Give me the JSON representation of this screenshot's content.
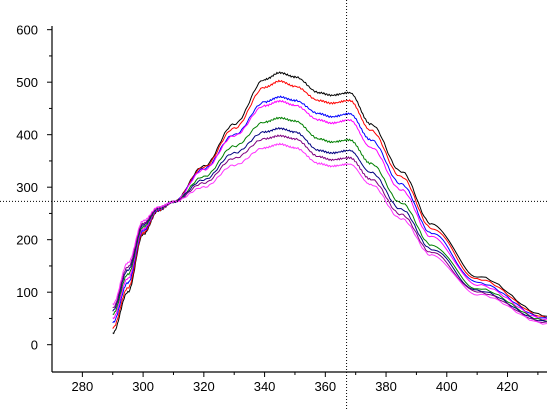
{
  "chart_data": {
    "type": "line",
    "title": "",
    "xlabel": "",
    "ylabel": "",
    "xlim": [
      270,
      433
    ],
    "ylim": [
      -52,
      607
    ],
    "x_ticks": [
      280,
      300,
      320,
      340,
      360,
      380,
      400,
      420
    ],
    "x_tick_labels": [
      "280",
      "300",
      "320",
      "340",
      "360",
      "380",
      "400",
      "420"
    ],
    "y_ticks": [
      0,
      100,
      200,
      300,
      400,
      500,
      600
    ],
    "y_tick_labels": [
      "0",
      "100",
      "200",
      "300",
      "400",
      "500",
      "600"
    ],
    "grid": false,
    "legend": "none",
    "crosshair": {
      "x": 367,
      "y": 273
    },
    "x": [
      290,
      295,
      300,
      305,
      310,
      320,
      330,
      340,
      345,
      350,
      358,
      362,
      368,
      375,
      385,
      395,
      410,
      433
    ],
    "series": [
      {
        "color": "#000000",
        "values": [
          22,
          100,
          210,
          255,
          272,
          340,
          420,
          505,
          518,
          510,
          480,
          475,
          480,
          420,
          330,
          230,
          130,
          55
        ]
      },
      {
        "color": "#ff0000",
        "values": [
          32,
          108,
          213,
          256,
          272,
          338,
          412,
          490,
          502,
          492,
          465,
          460,
          465,
          408,
          320,
          222,
          125,
          52
        ]
      },
      {
        "color": "#0000ff",
        "values": [
          42,
          118,
          217,
          257,
          272,
          335,
          400,
          462,
          472,
          465,
          440,
          434,
          440,
          390,
          306,
          212,
          118,
          50
        ]
      },
      {
        "color": "#ff00ff",
        "values": [
          50,
          126,
          220,
          258,
          272,
          333,
          398,
          455,
          464,
          456,
          428,
          422,
          428,
          376,
          295,
          205,
          114,
          48
        ]
      },
      {
        "color": "#008000",
        "values": [
          58,
          134,
          224,
          259,
          272,
          320,
          378,
          424,
          432,
          426,
          392,
          386,
          390,
          345,
          270,
          190,
          107,
          46
        ]
      },
      {
        "color": "#000080",
        "values": [
          65,
          142,
          228,
          260,
          272,
          314,
          365,
          405,
          412,
          405,
          370,
          365,
          370,
          328,
          258,
          182,
          103,
          44
        ]
      },
      {
        "color": "#800080",
        "values": [
          70,
          148,
          231,
          261,
          272,
          308,
          355,
          392,
          398,
          392,
          358,
          352,
          356,
          315,
          248,
          175,
          100,
          42
        ]
      },
      {
        "color": "#ff33ff",
        "values": [
          77,
          156,
          236,
          262,
          272,
          300,
          342,
          375,
          382,
          375,
          345,
          340,
          344,
          305,
          240,
          170,
          96,
          40
        ]
      }
    ]
  }
}
